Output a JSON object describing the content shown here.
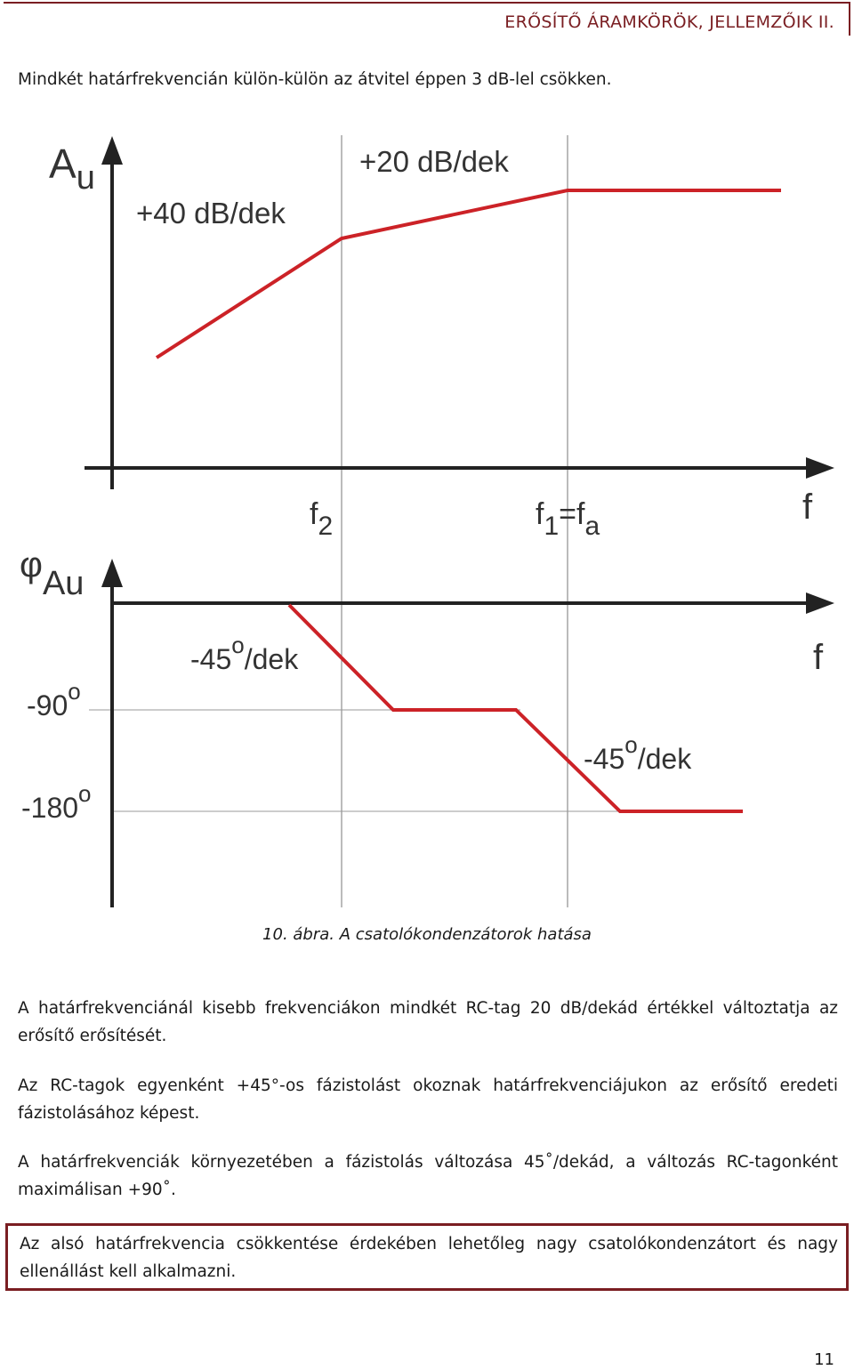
{
  "header": {
    "title": "ERŐSÍTŐ ÁRAMKÖRÖK, JELLEMZŐIK II."
  },
  "intro_text": "Mindkét határfrekvencián külön-külön az átvitel éppen 3 dB-lel csökken.",
  "figure": {
    "gain_axis_label_main": "A",
    "gain_axis_label_sub": "u",
    "slope_40": "+40 dB/dek",
    "slope_20": "+20 dB/dek",
    "f2_main": "f",
    "f2_sub": "2",
    "f1_main": "f",
    "f1_sub": "1",
    "f1_eq": "=f",
    "fa_sub": "a",
    "freq_label_top": "f",
    "phase_axis_symbol": "φ",
    "phase_axis_sub": "Au",
    "freq_label_bottom": "f",
    "deg90_text": "-90",
    "deg180_text": "-180",
    "degree_mark": "o",
    "slope45_value": "-45",
    "slope45_unit": "/dek",
    "caption": "10. ábra. A csatolókondenzátorok hatása",
    "colors": {
      "curve": "#cc2227",
      "axes": "#222222"
    }
  },
  "paragraphs": [
    "A határfrekvenciánál kisebb frekvenciákon mindkét RC-tag 20 dB/dekád értékkel változtatja az erősítő erősítését.",
    "Az RC-tagok egyenként +45°-os fázistolást okoznak határfrekvenciájukon az erősítő eredeti fázistolásához képest.",
    "A határfrekvenciák környezetében a fázistolás változása 45˚/dekád, a változás RC-tagonként maximálisan +90˚."
  ],
  "note": "Az alsó határfrekvencia csökkentése érdekében lehetőleg nagy csatolókondenzátort és nagy ellenállást kell alkalmazni.",
  "page_number": "11"
}
